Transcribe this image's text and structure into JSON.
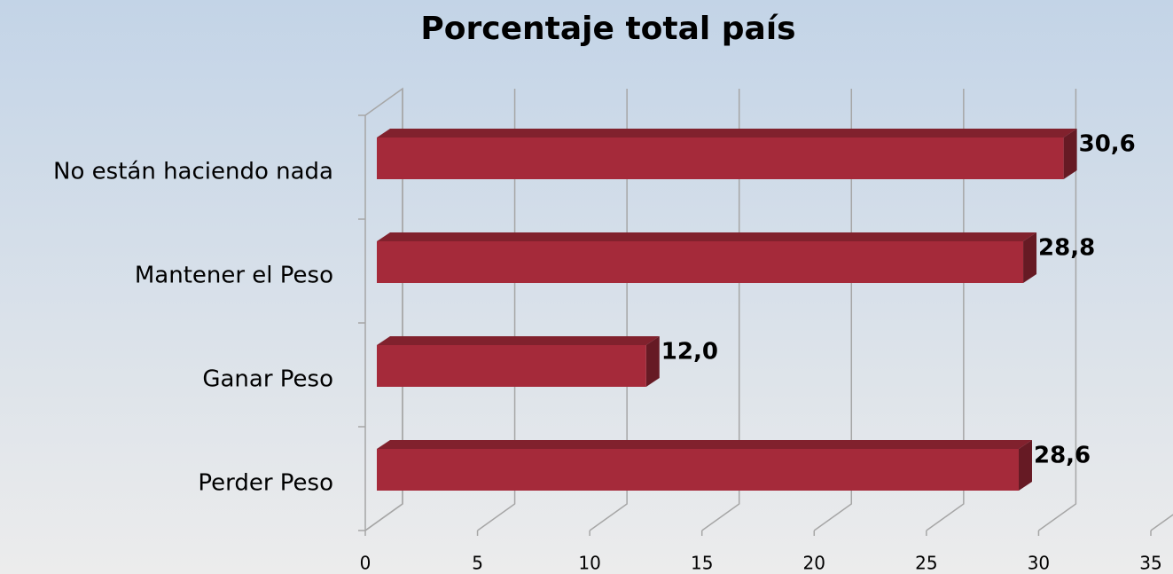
{
  "chart_data": {
    "type": "bar3d_horizontal",
    "title": "Porcentaje total país",
    "categories": [
      "No están haciendo nada",
      "Mantener el Peso",
      "Ganar Peso",
      "Perder Peso"
    ],
    "values": [
      30.6,
      28.8,
      12.0,
      28.6
    ],
    "value_labels": [
      "30,6",
      "28,8",
      "12,0",
      "28,6"
    ],
    "color": "#a52a3a",
    "xlim": [
      0,
      35
    ],
    "xticks": [
      0,
      5,
      10,
      15,
      20,
      25,
      30,
      35
    ],
    "grid": true
  }
}
